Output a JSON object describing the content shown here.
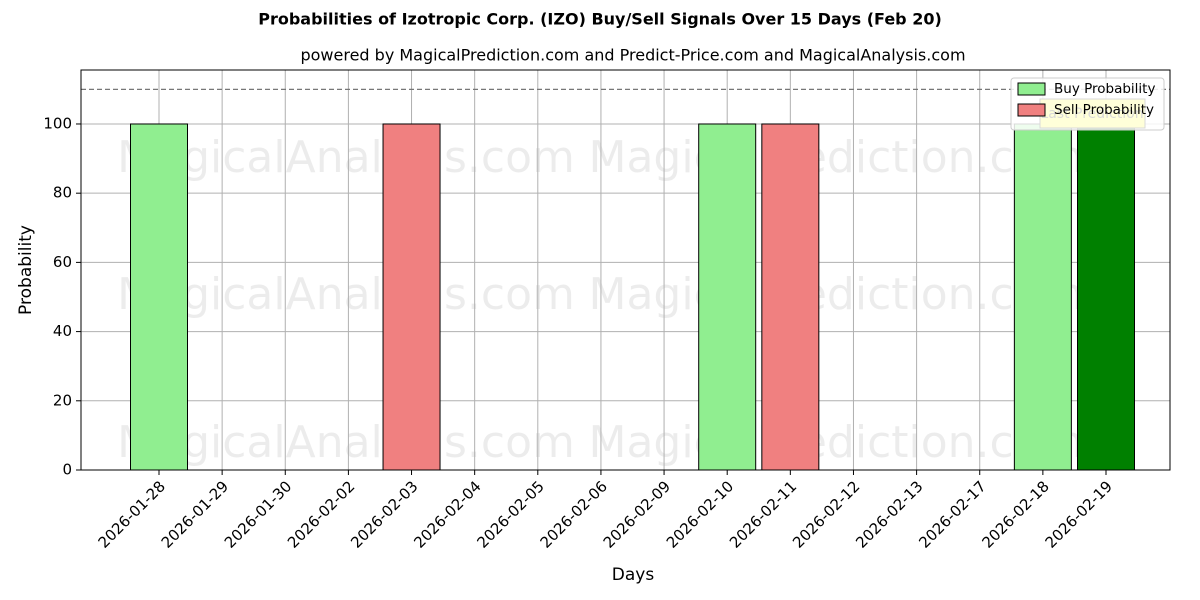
{
  "chart_data": {
    "type": "bar",
    "title": "Probabilities of Izotropic Corp. (IZO) Buy/Sell Signals Over 15 Days (Feb 20)",
    "subtitle": "powered by MagicalPrediction.com and Predict-Price.com and MagicalAnalysis.com",
    "x_label": "Days",
    "y_label": "Probability",
    "categories": [
      "2026-01-28",
      "2026-01-29",
      "2026-01-30",
      "2026-02-02",
      "2026-02-03",
      "2026-02-04",
      "2026-02-05",
      "2026-02-06",
      "2026-02-09",
      "2026-02-10",
      "2026-02-11",
      "2026-02-12",
      "2026-02-13",
      "2026-02-17",
      "2026-02-18",
      "2026-02-19"
    ],
    "series": [
      {
        "name": "Buy Probability",
        "color": "#90ee90",
        "values": [
          100,
          null,
          null,
          null,
          null,
          null,
          null,
          null,
          null,
          100,
          null,
          null,
          null,
          null,
          100,
          null
        ]
      },
      {
        "name": "Sell Probability",
        "color": "#f08080",
        "values": [
          null,
          null,
          null,
          null,
          100,
          null,
          null,
          null,
          null,
          null,
          100,
          null,
          null,
          null,
          null,
          null
        ]
      },
      {
        "name": "Last Prediction",
        "color": "#008000",
        "box_color": "#ffff00",
        "in_legend": false,
        "values": [
          null,
          null,
          null,
          null,
          null,
          null,
          null,
          null,
          null,
          null,
          null,
          null,
          null,
          null,
          null,
          100
        ]
      }
    ],
    "threshold": 110,
    "ylim": [
      0,
      115.6
    ],
    "yticks": [
      0,
      20,
      40,
      60,
      80,
      100
    ],
    "grid": true,
    "legend": "upper right",
    "watermarks": [
      "MagicalAnalysis.com",
      "MagicalPrediction.com"
    ]
  }
}
